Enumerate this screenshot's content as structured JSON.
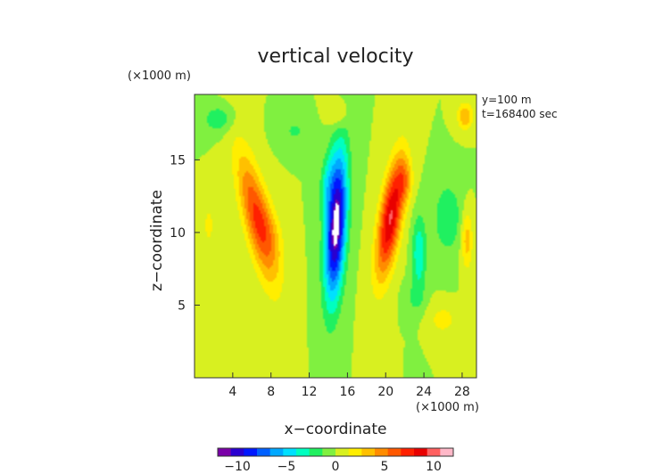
{
  "chart_data": {
    "type": "heatmap",
    "title": "vertical velocity",
    "xlabel": "x−coordinate",
    "ylabel": "z−coordinate",
    "x_unit": "(×1000 m)",
    "y_unit": "(×1000 m)",
    "annotations": [
      "y=100 m",
      "t=168400 sec"
    ],
    "xlim": [
      0,
      29.5
    ],
    "ylim": [
      0,
      19.5
    ],
    "x_ticks": [
      4,
      8,
      12,
      16,
      20,
      24,
      28
    ],
    "x_tick_labels": [
      "4",
      "8",
      "12",
      "16",
      "20",
      "24",
      "28"
    ],
    "y_ticks": [
      5,
      10,
      15
    ],
    "y_tick_labels": [
      "5",
      "10",
      "15"
    ],
    "colorbar": {
      "range": [
        -12,
        12
      ],
      "ticks": [
        -10,
        -5,
        0,
        5,
        10
      ],
      "tick_labels": [
        "−10",
        "−5",
        "0",
        "5",
        "10"
      ],
      "colors": [
        "#7a00a8",
        "#2a00d0",
        "#0018ff",
        "#0060ff",
        "#00a8ff",
        "#00e0ff",
        "#00ffc0",
        "#20f060",
        "#80f040",
        "#d8f020",
        "#ffee00",
        "#ffc000",
        "#ff8c00",
        "#ff5800",
        "#ff2000",
        "#e80000",
        "#ff6060",
        "#ffb8c8"
      ]
    },
    "features": [
      {
        "x": 6.5,
        "z": 11.0,
        "sx": 1.4,
        "sz": 4.5,
        "tilt": -0.33,
        "value": 6.5
      },
      {
        "x": 8.0,
        "z": 10.0,
        "sx": 1.3,
        "sz": 2.5,
        "tilt": -0.3,
        "value": 2.0
      },
      {
        "x": 14.8,
        "z": 10.5,
        "sx": 1.05,
        "sz": 5.0,
        "tilt": 0.08,
        "value": -12.0
      },
      {
        "x": 13.8,
        "z": 13.5,
        "sx": 0.7,
        "sz": 2.0,
        "tilt": 0.15,
        "value": -2.5
      },
      {
        "x": 20.5,
        "z": 11.0,
        "sx": 1.15,
        "sz": 4.0,
        "tilt": 0.22,
        "value": 9.5
      },
      {
        "x": 22.0,
        "z": 13.5,
        "sx": 0.8,
        "sz": 1.5,
        "tilt": 0.0,
        "value": 3.0
      },
      {
        "x": 23.5,
        "z": 8.5,
        "sx": 0.7,
        "sz": 2.5,
        "tilt": 0.0,
        "value": -4.0
      },
      {
        "x": 15.0,
        "z": 18.2,
        "sx": 1.0,
        "sz": 1.0,
        "tilt": 0.0,
        "value": 2.0
      },
      {
        "x": 26.5,
        "z": 11.0,
        "sx": 1.5,
        "sz": 2.5,
        "tilt": 0.0,
        "value": -2.5
      },
      {
        "x": 28.5,
        "z": 9.5,
        "sx": 0.6,
        "sz": 2.0,
        "tilt": 0.0,
        "value": 3.5
      },
      {
        "x": 28.3,
        "z": 18.0,
        "sx": 0.8,
        "sz": 0.9,
        "tilt": 0.0,
        "value": 4.0
      },
      {
        "x": 2.5,
        "z": 17.8,
        "sx": 1.5,
        "sz": 0.9,
        "tilt": 0.0,
        "value": -2.5
      },
      {
        "x": 10.5,
        "z": 17.0,
        "sx": 1.5,
        "sz": 1.0,
        "tilt": 0.0,
        "value": -1.5
      },
      {
        "x": 1.5,
        "z": 10.5,
        "sx": 0.6,
        "sz": 1.5,
        "tilt": 0.0,
        "value": 1.8
      },
      {
        "x": 26.0,
        "z": 4.0,
        "sx": 1.5,
        "sz": 1.0,
        "tilt": 0.0,
        "value": 2.0
      },
      {
        "x": 23.0,
        "z": 5.5,
        "sx": 1.0,
        "sz": 1.0,
        "tilt": 0.0,
        "value": -1.5
      }
    ]
  }
}
